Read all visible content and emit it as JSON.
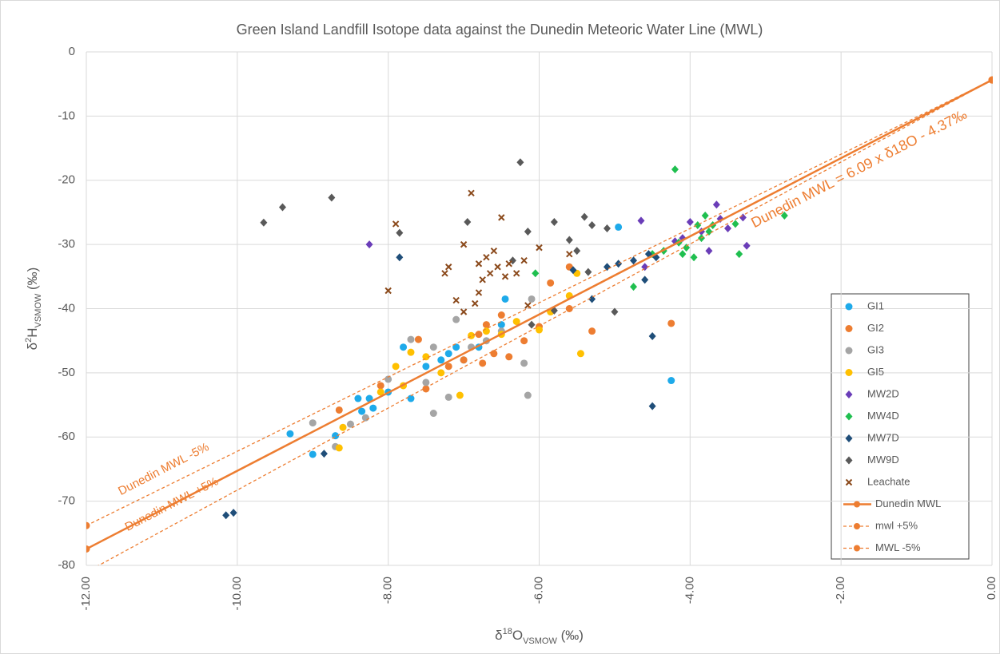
{
  "chart_data": {
    "type": "scatter",
    "title": "Green Island Landfill Isotope data against the Dunedin Meteoric Water Line (MWL)",
    "x_label": [
      "δ",
      "18",
      "O",
      "VSMOW",
      " (‰)"
    ],
    "y_label": [
      "δ",
      "2",
      "H",
      "VSMOW",
      " (‰)"
    ],
    "xlim": [
      -12,
      0
    ],
    "ylim": [
      -80,
      0
    ],
    "xticks": [
      {
        "value": -12,
        "label": "-12.00"
      },
      {
        "value": -10,
        "label": "-10.00"
      },
      {
        "value": -8,
        "label": "-8.00"
      },
      {
        "value": -6,
        "label": "-6.00"
      },
      {
        "value": -4,
        "label": "-4.00"
      },
      {
        "value": -2,
        "label": "-2.00"
      },
      {
        "value": 0,
        "label": "0.00"
      }
    ],
    "yticks": [
      0,
      -10,
      -20,
      -30,
      -40,
      -50,
      -60,
      -70,
      -80
    ],
    "grid": true,
    "legend": "right",
    "annotations": [
      "Dunedin MWL = 6.09  x δ18O - 4.37‰",
      "Dunedin MWL -5%",
      "Dunedin MWL +5%"
    ],
    "series": [
      {
        "name": "GI1",
        "color": "#1eaaea",
        "marker": "circle",
        "x": [
          -9.3,
          -9.0,
          -8.7,
          -8.4,
          -8.35,
          -8.25,
          -8.2,
          -8.0,
          -7.8,
          -7.7,
          -7.5,
          -7.3,
          -7.2,
          -7.1,
          -7.0,
          -6.8,
          -6.5,
          -6.45,
          -4.95,
          -4.25
        ],
        "values": [
          -59.5,
          -62.7,
          -59.8,
          -54,
          -56,
          -54,
          -55.5,
          -53,
          -46,
          -54,
          -49,
          -48,
          -47,
          -46,
          -48,
          -46,
          -42.5,
          -38.5,
          -27.3,
          -51.2
        ]
      },
      {
        "name": "GI2",
        "color": "#ed7d31",
        "marker": "circle",
        "x": [
          -8.65,
          -8.1,
          -7.6,
          -7.5,
          -7.2,
          -7.0,
          -6.8,
          -6.75,
          -6.6,
          -6.5,
          -6.4,
          -6.2,
          -6.0,
          -5.85,
          -5.6,
          -5.3,
          -5.6,
          -4.25,
          -6.7
        ],
        "values": [
          -55.8,
          -52,
          -44.8,
          -52.5,
          -49,
          -48,
          -44,
          -48.5,
          -47,
          -41,
          -47.5,
          -45,
          -42.8,
          -36,
          -40,
          -43.5,
          -33.5,
          -42.3,
          -42.5
        ]
      },
      {
        "name": "GI3",
        "color": "#a5a5a5",
        "marker": "circle",
        "x": [
          -9.0,
          -8.7,
          -8.5,
          -8.3,
          -8.0,
          -7.7,
          -7.5,
          -7.4,
          -7.2,
          -7.1,
          -6.9,
          -6.7,
          -6.5,
          -6.2,
          -6.15,
          -6.1,
          -7.4
        ],
        "values": [
          -57.8,
          -61.5,
          -58,
          -57,
          -51,
          -44.8,
          -51.5,
          -56.3,
          -53.8,
          -41.7,
          -46,
          -45,
          -43.5,
          -48.5,
          -53.5,
          -38.5,
          -46
        ]
      },
      {
        "name": "GI5",
        "color": "#ffc000",
        "marker": "circle",
        "x": [
          -8.65,
          -8.6,
          -8.1,
          -7.9,
          -7.7,
          -7.5,
          -7.3,
          -7.05,
          -6.9,
          -6.7,
          -6.5,
          -6.3,
          -6.0,
          -5.85,
          -5.6,
          -5.45,
          -5.5,
          -7.8
        ],
        "values": [
          -61.7,
          -58.5,
          -53,
          -49,
          -46.8,
          -47.5,
          -50,
          -53.5,
          -44.2,
          -43.5,
          -44,
          -42,
          -43.3,
          -40.5,
          -38,
          -47,
          -34.5,
          -52
        ]
      },
      {
        "name": "MW2D",
        "color": "#6a3db8",
        "marker": "diamond",
        "x": [
          -8.25,
          -4.65,
          -4.6,
          -4.2,
          -4.0,
          -3.85,
          -3.75,
          -3.65,
          -3.6,
          -3.5,
          -3.3,
          -3.25,
          -4.1
        ],
        "values": [
          -30,
          -26.3,
          -33.5,
          -29.5,
          -26.5,
          -28,
          -31,
          -23.8,
          -26,
          -27.5,
          -25.8,
          -30.2,
          -29
        ]
      },
      {
        "name": "MW4D",
        "color": "#1fbf4f",
        "marker": "diamond",
        "x": [
          -6.05,
          -4.75,
          -4.5,
          -4.35,
          -4.2,
          -4.15,
          -4.05,
          -3.95,
          -3.9,
          -3.85,
          -3.8,
          -3.75,
          -3.7,
          -3.4,
          -3.35,
          -2.75,
          -4.1
        ],
        "values": [
          -34.5,
          -36.6,
          -31.5,
          -31,
          -18.3,
          -29.7,
          -30.5,
          -32,
          -27,
          -29,
          -25.5,
          -28,
          -27,
          -26.8,
          -31.5,
          -25.5,
          -31.5
        ]
      },
      {
        "name": "MW7D",
        "color": "#1f4e79",
        "marker": "diamond",
        "x": [
          -10.15,
          -10.05,
          -8.85,
          -7.85,
          -5.55,
          -5.3,
          -5.1,
          -4.95,
          -4.75,
          -4.6,
          -4.55,
          -4.5,
          -4.5,
          -4.45
        ],
        "values": [
          -72.2,
          -71.8,
          -62.6,
          -32,
          -34,
          -38.5,
          -33.5,
          -33,
          -32.5,
          -35.5,
          -31.5,
          -44.3,
          -55.2,
          -32
        ]
      },
      {
        "name": "MW9D",
        "color": "#595959",
        "marker": "diamond",
        "x": [
          -9.65,
          -9.4,
          -8.75,
          -7.85,
          -6.95,
          -6.25,
          -6.15,
          -5.8,
          -5.6,
          -5.5,
          -5.4,
          -5.3,
          -5.1,
          -5.35,
          -5.0,
          -5.8,
          -6.1,
          -6.35
        ],
        "values": [
          -26.6,
          -24.2,
          -22.7,
          -28.2,
          -26.5,
          -17.2,
          -28,
          -26.5,
          -29.3,
          -31,
          -25.7,
          -27,
          -27.5,
          -34.3,
          -40.5,
          -40.3,
          -42.5,
          -32.5
        ]
      },
      {
        "name": "Leachate",
        "color": "#8b4a1c",
        "marker": "x",
        "x": [
          -8.0,
          -7.9,
          -7.25,
          -7.2,
          -7.1,
          -7.0,
          -6.9,
          -6.85,
          -6.8,
          -6.75,
          -6.7,
          -6.65,
          -6.6,
          -6.55,
          -6.5,
          -6.45,
          -6.4,
          -6.3,
          -6.2,
          -6.15,
          -6.0,
          -5.6,
          -6.8,
          -7.0
        ],
        "values": [
          -37.2,
          -26.8,
          -34.5,
          -33.5,
          -38.7,
          -30,
          -22,
          -39.2,
          -33,
          -35.5,
          -32,
          -34.5,
          -31,
          -33.5,
          -25.8,
          -35,
          -33,
          -34.5,
          -32.5,
          -39.5,
          -30.5,
          -31.5,
          -37.5,
          -40.5
        ]
      },
      {
        "name": "Dunedin MWL",
        "color": "#ed7d31",
        "marker": "line",
        "style": "solid",
        "x": [
          -12,
          0
        ],
        "values": [
          -77.45,
          -4.37
        ]
      },
      {
        "name": "mwl +5%",
        "color": "#ed7d31",
        "marker": "line",
        "style": "dashed",
        "x": [
          -12,
          0
        ],
        "values": [
          -81.05,
          -4.37
        ]
      },
      {
        "name": "MWL -5%",
        "color": "#ed7d31",
        "marker": "line",
        "style": "dashed",
        "x": [
          -12,
          0
        ],
        "values": [
          -73.8,
          -4.37
        ]
      }
    ]
  }
}
